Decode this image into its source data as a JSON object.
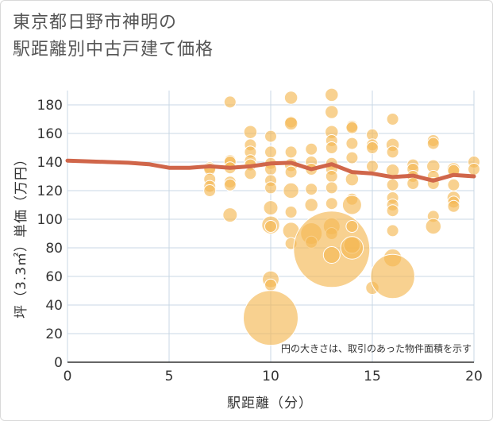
{
  "title_lines": [
    "東京都日野市神明の",
    "駅距離別中古戸建て価格"
  ],
  "chart_data": {
    "type": "scatter",
    "xlabel": "駅距離（分）",
    "ylabel": "坪（3.3㎡）単価（万円）",
    "xlim": [
      0,
      20
    ],
    "ylim": [
      0,
      190
    ],
    "xticks": [
      0,
      5,
      10,
      15,
      20
    ],
    "yticks": [
      0,
      20,
      40,
      60,
      80,
      100,
      120,
      140,
      160,
      180
    ],
    "note": "円の大きさは、取引のあった物件面積を示す",
    "colors": {
      "bubble": "#f4b955",
      "line": "#d0664a",
      "grid": "#c9d7e4"
    },
    "points": [
      [
        7,
        136,
        1
      ],
      [
        7,
        135,
        1
      ],
      [
        7,
        128,
        1
      ],
      [
        7,
        123,
        1
      ],
      [
        7,
        120,
        1
      ],
      [
        8,
        182,
        1
      ],
      [
        8,
        141,
        1
      ],
      [
        8,
        140,
        1
      ],
      [
        8,
        136,
        1
      ],
      [
        8,
        126,
        1
      ],
      [
        8,
        124,
        1
      ],
      [
        8,
        103,
        1.2
      ],
      [
        9,
        161,
        1.1
      ],
      [
        9,
        152,
        1
      ],
      [
        9,
        147,
        1
      ],
      [
        9,
        141,
        1
      ],
      [
        9,
        138,
        1
      ],
      [
        9,
        132,
        1
      ],
      [
        10,
        158,
        1
      ],
      [
        10,
        147,
        1
      ],
      [
        10,
        139,
        1
      ],
      [
        10,
        135,
        1
      ],
      [
        10,
        127,
        1
      ],
      [
        10,
        122,
        1
      ],
      [
        10,
        108,
        1.2
      ],
      [
        10,
        96,
        1.5
      ],
      [
        10,
        95,
        1
      ],
      [
        10,
        58,
        1.4
      ],
      [
        10,
        54,
        1
      ],
      [
        10,
        31,
        4.6
      ],
      [
        11,
        185,
        1.1
      ],
      [
        11,
        168,
        1
      ],
      [
        11,
        167,
        1.1
      ],
      [
        11,
        147,
        1
      ],
      [
        11,
        138,
        1.1
      ],
      [
        11,
        133,
        1
      ],
      [
        11,
        120,
        1.3
      ],
      [
        11,
        105,
        1
      ],
      [
        11,
        92,
        1.4
      ],
      [
        11,
        83,
        1
      ],
      [
        12,
        149,
        1
      ],
      [
        12,
        140,
        1
      ],
      [
        12,
        135,
        1
      ],
      [
        12,
        121,
        1
      ],
      [
        12,
        110,
        1.1
      ],
      [
        12,
        90,
        1.8
      ],
      [
        12,
        84,
        1
      ],
      [
        13,
        187,
        1.1
      ],
      [
        13,
        175,
        1.1
      ],
      [
        13,
        161,
        1.1
      ],
      [
        13,
        155,
        1
      ],
      [
        13,
        150,
        1
      ],
      [
        13,
        139,
        1
      ],
      [
        13,
        135,
        1
      ],
      [
        13,
        130,
        1
      ],
      [
        13,
        122,
        1
      ],
      [
        13,
        111,
        1
      ],
      [
        13,
        95,
        1.4
      ],
      [
        13,
        90,
        1
      ],
      [
        13,
        79,
        6.4
      ],
      [
        13,
        75,
        1.4
      ],
      [
        14,
        165,
        1
      ],
      [
        14,
        164,
        1
      ],
      [
        14,
        153,
        1
      ],
      [
        14,
        143,
        1
      ],
      [
        14,
        128,
        1.1
      ],
      [
        14,
        114,
        1
      ],
      [
        14,
        110,
        1.6
      ],
      [
        14,
        95,
        1
      ],
      [
        14,
        82,
        1.4
      ],
      [
        14,
        80,
        1.9
      ],
      [
        15,
        159,
        1
      ],
      [
        15,
        152,
        1
      ],
      [
        15,
        150,
        1
      ],
      [
        15,
        137,
        1
      ],
      [
        15,
        52,
        1.1
      ],
      [
        16,
        170,
        1
      ],
      [
        16,
        152,
        1.1
      ],
      [
        16,
        147,
        1
      ],
      [
        16,
        134,
        1.1
      ],
      [
        16,
        124,
        1
      ],
      [
        16,
        115,
        1
      ],
      [
        16,
        110,
        1
      ],
      [
        16,
        106,
        1
      ],
      [
        16,
        92,
        1
      ],
      [
        16,
        73,
        1.5
      ],
      [
        16,
        60,
        3.7
      ],
      [
        17,
        138,
        1
      ],
      [
        17,
        135,
        1
      ],
      [
        17,
        130,
        1
      ],
      [
        17,
        125,
        1
      ],
      [
        18,
        155,
        1
      ],
      [
        18,
        153,
        1
      ],
      [
        18,
        137,
        1.1
      ],
      [
        18,
        130,
        1
      ],
      [
        18,
        125,
        1
      ],
      [
        18,
        102,
        1
      ],
      [
        18,
        95,
        1.3
      ],
      [
        19,
        135,
        1.1
      ],
      [
        19,
        134,
        1
      ],
      [
        19,
        124,
        1
      ],
      [
        19,
        115,
        1.1
      ],
      [
        19,
        112,
        1
      ],
      [
        19,
        109,
        1
      ],
      [
        20,
        140,
        1
      ],
      [
        20,
        135,
        1
      ]
    ],
    "line": [
      [
        0,
        141
      ],
      [
        1,
        140.5
      ],
      [
        2,
        140
      ],
      [
        3,
        139.5
      ],
      [
        4,
        138.5
      ],
      [
        5,
        136
      ],
      [
        6,
        136
      ],
      [
        7,
        137
      ],
      [
        8,
        136
      ],
      [
        9,
        137
      ],
      [
        10,
        139
      ],
      [
        11,
        139.5
      ],
      [
        12,
        135
      ],
      [
        13,
        138.5
      ],
      [
        14,
        133
      ],
      [
        15,
        132
      ],
      [
        16,
        129.5
      ],
      [
        17,
        130.5
      ],
      [
        18,
        127
      ],
      [
        19,
        131
      ],
      [
        20,
        130
      ]
    ]
  }
}
